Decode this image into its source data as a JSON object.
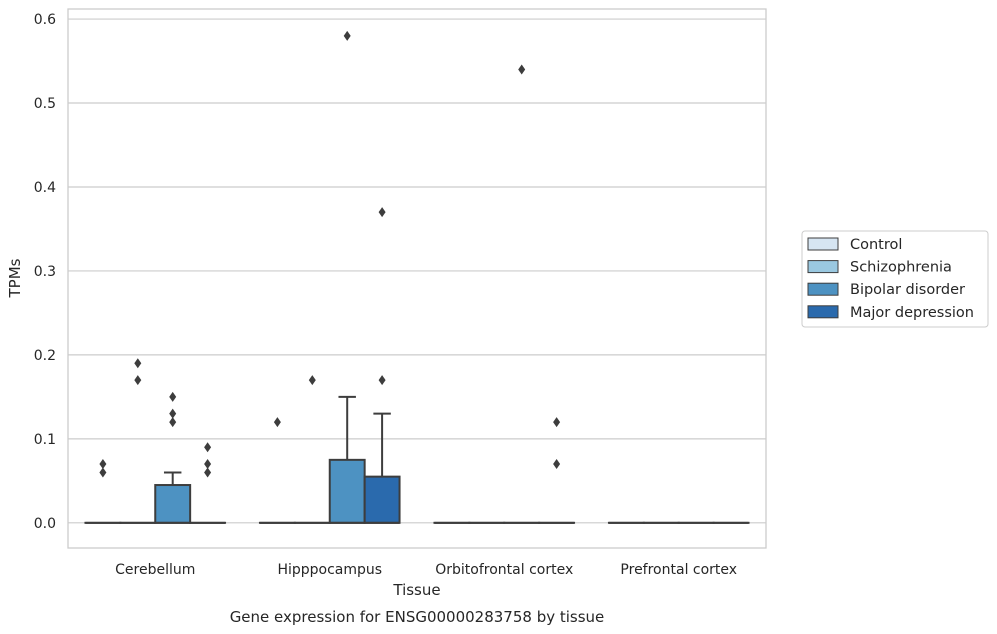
{
  "chart_data": {
    "type": "box",
    "categories": [
      "Cerebellum",
      "Hipppocampus",
      "Orbitofrontal cortex",
      "Prefrontal cortex"
    ],
    "xlabel": "Tissue",
    "ylabel": "TPMs",
    "caption": "Gene expression for ENSG00000283758 by tissue",
    "ylim": [
      -0.03,
      0.612
    ],
    "yticks": [
      0.0,
      0.1,
      0.2,
      0.3,
      0.4,
      0.5,
      0.6
    ],
    "ytick_labels": [
      "0.0",
      "0.1",
      "0.2",
      "0.3",
      "0.4",
      "0.5",
      "0.6"
    ],
    "grid": "horizontal",
    "legend_position": "right-center",
    "series": [
      {
        "name": "Control",
        "color": "#d6e5f2",
        "boxes": [
          {
            "q1": 0,
            "median": 0,
            "q3": 0,
            "whisker_low": 0,
            "whisker_high": 0,
            "outliers": [
              0.06,
              0.07
            ]
          },
          {
            "q1": 0,
            "median": 0,
            "q3": 0,
            "whisker_low": 0,
            "whisker_high": 0,
            "outliers": [
              0.12
            ]
          },
          {
            "q1": 0,
            "median": 0,
            "q3": 0,
            "whisker_low": 0,
            "whisker_high": 0,
            "outliers": []
          },
          {
            "q1": 0,
            "median": 0,
            "q3": 0,
            "whisker_low": 0,
            "whisker_high": 0,
            "outliers": []
          }
        ]
      },
      {
        "name": "Schizophrenia",
        "color": "#9ac8e0",
        "boxes": [
          {
            "q1": 0,
            "median": 0,
            "q3": 0,
            "whisker_low": 0,
            "whisker_high": 0,
            "outliers": [
              0.17,
              0.19
            ]
          },
          {
            "q1": 0,
            "median": 0,
            "q3": 0,
            "whisker_low": 0,
            "whisker_high": 0,
            "outliers": [
              0.17
            ]
          },
          {
            "q1": 0,
            "median": 0,
            "q3": 0,
            "whisker_low": 0,
            "whisker_high": 0,
            "outliers": []
          },
          {
            "q1": 0,
            "median": 0,
            "q3": 0,
            "whisker_low": 0,
            "whisker_high": 0,
            "outliers": []
          }
        ]
      },
      {
        "name": "Bipolar disorder",
        "color": "#4d92c2",
        "boxes": [
          {
            "q1": 0,
            "median": 0,
            "q3": 0.045,
            "whisker_low": 0,
            "whisker_high": 0.06,
            "outliers": [
              0.12,
              0.13,
              0.15
            ]
          },
          {
            "q1": 0,
            "median": 0,
            "q3": 0.075,
            "whisker_low": 0,
            "whisker_high": 0.15,
            "outliers": [
              0.58
            ]
          },
          {
            "q1": 0,
            "median": 0,
            "q3": 0,
            "whisker_low": 0,
            "whisker_high": 0,
            "outliers": [
              0.54
            ]
          },
          {
            "q1": 0,
            "median": 0,
            "q3": 0,
            "whisker_low": 0,
            "whisker_high": 0,
            "outliers": []
          }
        ]
      },
      {
        "name": "Major depression",
        "color": "#2a6aad",
        "boxes": [
          {
            "q1": 0,
            "median": 0,
            "q3": 0,
            "whisker_low": 0,
            "whisker_high": 0,
            "outliers": [
              0.06,
              0.07,
              0.09
            ]
          },
          {
            "q1": 0,
            "median": 0,
            "q3": 0.055,
            "whisker_low": 0,
            "whisker_high": 0.13,
            "outliers": [
              0.17,
              0.37
            ]
          },
          {
            "q1": 0,
            "median": 0,
            "q3": 0,
            "whisker_low": 0,
            "whisker_high": 0,
            "outliers": [
              0.07,
              0.12
            ]
          },
          {
            "q1": 0,
            "median": 0,
            "q3": 0,
            "whisker_low": 0,
            "whisker_high": 0,
            "outliers": []
          }
        ]
      }
    ]
  }
}
